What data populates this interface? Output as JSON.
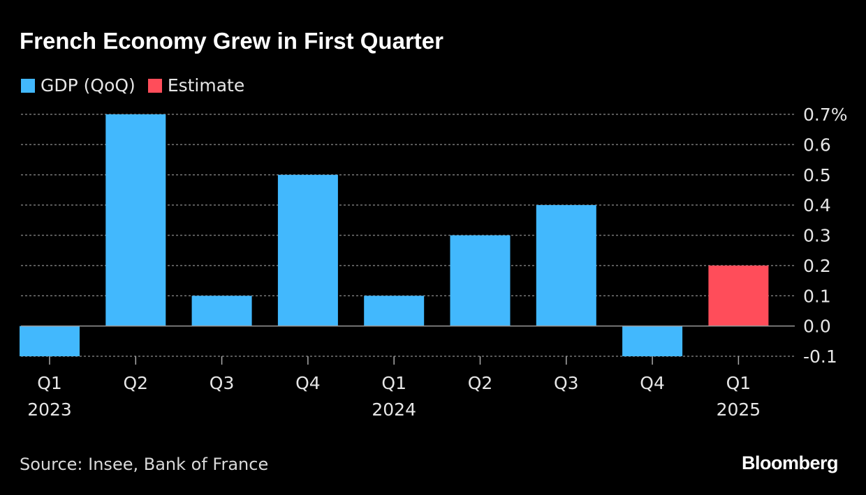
{
  "title": "French Economy Grew in First Quarter",
  "source": "Source: Insee, Bank of France",
  "logo": "Bloomberg",
  "chart_data": {
    "type": "bar",
    "title": "French Economy Grew in First Quarter",
    "legend": [
      {
        "name": "GDP (QoQ)",
        "color": "#42b8fd"
      },
      {
        "name": "Estimate",
        "color": "#ff4d5a"
      }
    ],
    "legend_placement": "top-left",
    "categories": [
      "Q1 2023",
      "Q2 2023",
      "Q3 2023",
      "Q4 2023",
      "Q1 2024",
      "Q2 2024",
      "Q3 2024",
      "Q4 2024",
      "Q1 2025"
    ],
    "tick_labels": [
      [
        "Q1",
        "2023"
      ],
      [
        "Q2",
        ""
      ],
      [
        "Q3",
        ""
      ],
      [
        "Q4",
        ""
      ],
      [
        "Q1",
        "2024"
      ],
      [
        "Q2",
        ""
      ],
      [
        "Q3",
        ""
      ],
      [
        "Q4",
        ""
      ],
      [
        "Q1",
        "2025"
      ]
    ],
    "values": [
      -0.1,
      0.7,
      0.1,
      0.5,
      0.1,
      0.3,
      0.4,
      -0.1,
      0.2
    ],
    "series_index": [
      0,
      0,
      0,
      0,
      0,
      0,
      0,
      0,
      1
    ],
    "yticks": [
      -0.1,
      0.0,
      0.1,
      0.2,
      0.3,
      0.4,
      0.5,
      0.6,
      0.7
    ],
    "ytick_labels": [
      "-0.1",
      "0.0",
      "0.1",
      "0.2",
      "0.3",
      "0.4",
      "0.5",
      "0.6",
      "0.7%"
    ],
    "ylim": [
      -0.1,
      0.7
    ],
    "y_axis_side": "right",
    "grid": true
  }
}
